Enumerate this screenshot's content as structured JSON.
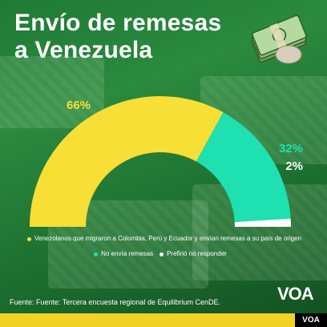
{
  "title_line1": "Envío de remesas",
  "title_line2": "a Venezuela",
  "chart_data": {
    "type": "semi-donut",
    "title": "Envío de remesas a Venezuela",
    "series": [
      {
        "label": "Venezolanos que migraron a Colombia, Perú y Ecuador y envían remesas a su país de origen",
        "value": 66,
        "value_label": "66%",
        "color": "#f7df36"
      },
      {
        "label": "No envía remesas",
        "value": 32,
        "value_label": "32%",
        "color": "#1fe0b0"
      },
      {
        "label": "Prefirió no responder",
        "value": 2,
        "value_label": "2%",
        "color": "#ffffff"
      }
    ],
    "total": 100
  },
  "source": "Fuente: Fuente: Tercera encuesta regional de Equilibrium CenDE.",
  "logo": "VOA",
  "logo_tab": "VOA",
  "colors": {
    "background": "#2b8a3e",
    "accent": "#f7df36",
    "secondary": "#1fe0b0"
  },
  "icons": {
    "money": "money-stack-icon"
  }
}
